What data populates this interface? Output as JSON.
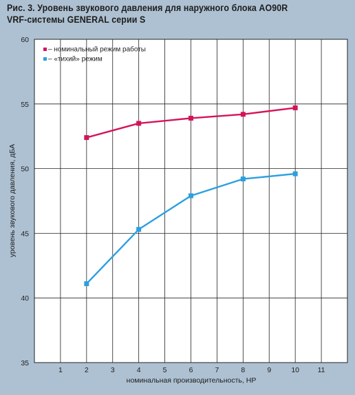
{
  "title_lines": [
    "Рис. 3. Уровень звукового давления для наружного блока AO90R",
    "VRF-системы GENERAL серии S"
  ],
  "chart_data": {
    "type": "line",
    "title": "Рис. 3. Уровень звукового давления для наружного блока AO90R VRF-системы GENERAL серии S",
    "xlabel": "номинальная производительность, HP",
    "ylabel": "уровень звукового давления, дБА",
    "xlim": [
      0,
      12
    ],
    "ylim": [
      35,
      60
    ],
    "x_ticks": [
      1,
      2,
      3,
      4,
      5,
      6,
      7,
      8,
      9,
      10,
      11
    ],
    "y_ticks": [
      35,
      40,
      45,
      50,
      55,
      60
    ],
    "grid": true,
    "legend_position": "top-left",
    "series": [
      {
        "name": "номинальный режим работы",
        "legend_label": "– номинальный режим работы",
        "color": "#d4145a",
        "x": [
          2,
          4,
          6,
          8,
          10
        ],
        "y": [
          52.4,
          53.5,
          53.9,
          54.2,
          54.7
        ]
      },
      {
        "name": "«тихий» режим",
        "legend_label": "– «тихий» режим",
        "color": "#2b9fe0",
        "x": [
          2,
          4,
          6,
          8,
          10
        ],
        "y": [
          41.1,
          45.3,
          47.9,
          49.2,
          49.6
        ]
      }
    ]
  },
  "colors": {
    "background": "#aec1d2",
    "plot_area": "#ffffff",
    "grid": "#222222"
  }
}
